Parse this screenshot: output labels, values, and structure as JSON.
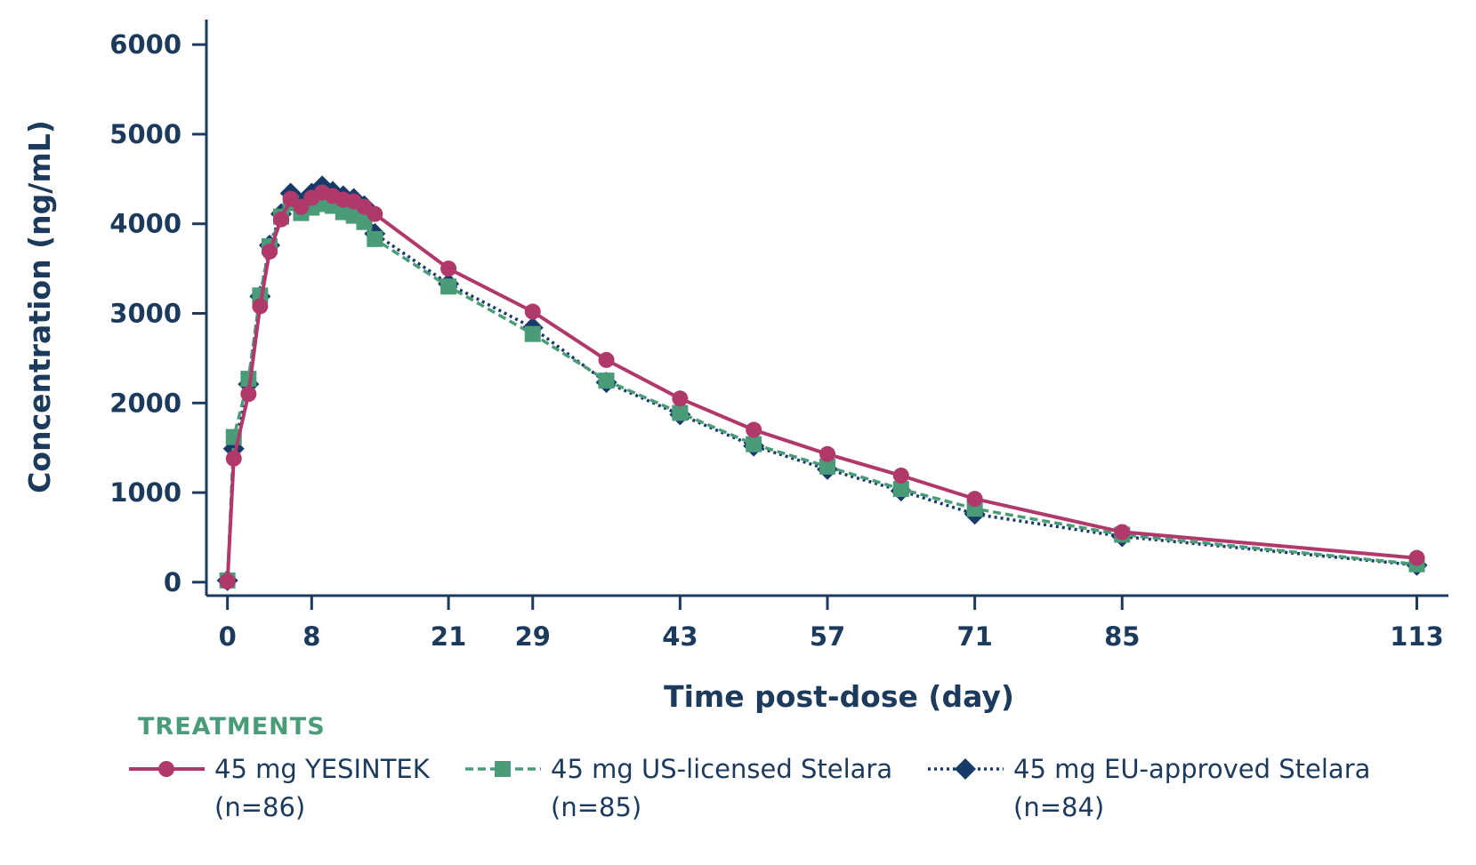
{
  "chart_data": {
    "type": "line",
    "xlabel": "Time post-dose (day)",
    "ylabel": "Concentration (ng/mL)",
    "xlim": [
      -2,
      116
    ],
    "ylim": [
      -150,
      6200
    ],
    "xticks": [
      0,
      8,
      21,
      29,
      43,
      57,
      71,
      85,
      113
    ],
    "yticks": [
      0,
      1000,
      2000,
      3000,
      4000,
      5000,
      6000
    ],
    "grid": false,
    "legend": {
      "title": "TREATMENTS",
      "placement": "bottom"
    },
    "series": [
      {
        "name": "45 mg YESINTEK",
        "name_line2": "(n=86)",
        "color": "#b0386a",
        "marker": "circle",
        "line_style": "solid",
        "x": [
          0,
          0.6,
          2,
          3.1,
          4,
          5.1,
          6,
          7,
          8,
          9,
          10,
          11,
          12,
          13,
          14,
          21,
          29,
          36,
          43,
          50,
          57,
          64,
          71,
          85,
          113
        ],
        "y": [
          10,
          1380,
          2100,
          3080,
          3690,
          4050,
          4280,
          4190,
          4290,
          4350,
          4310,
          4270,
          4250,
          4190,
          4110,
          3500,
          3020,
          2480,
          2050,
          1700,
          1430,
          1190,
          930,
          560,
          270
        ]
      },
      {
        "name": "45 mg US-licensed Stelara",
        "name_line2": "(n=85)",
        "color": "#4a9c78",
        "marker": "square",
        "line_style": "dashed",
        "x": [
          0,
          0.6,
          2,
          3.1,
          4,
          5.1,
          6,
          7,
          8,
          9,
          10,
          11,
          12,
          13,
          14,
          21,
          29,
          36,
          43,
          50,
          57,
          64,
          71,
          85,
          113
        ],
        "y": [
          20,
          1620,
          2270,
          3200,
          3750,
          4080,
          4230,
          4120,
          4180,
          4220,
          4200,
          4130,
          4090,
          4020,
          3830,
          3300,
          2770,
          2250,
          1890,
          1540,
          1290,
          1040,
          820,
          530,
          200
        ]
      },
      {
        "name": "45 mg EU-approved Stelara",
        "name_line2": "(n=84)",
        "color": "#173a68",
        "marker": "diamond",
        "line_style": "dotted",
        "x": [
          0,
          0.6,
          2,
          3.1,
          4,
          5.1,
          6,
          7,
          8,
          9,
          10,
          11,
          12,
          13,
          14,
          21,
          29,
          36,
          43,
          50,
          57,
          64,
          71,
          85,
          113
        ],
        "y": [
          20,
          1490,
          2210,
          3190,
          3760,
          4110,
          4340,
          4220,
          4340,
          4420,
          4360,
          4310,
          4280,
          4200,
          3890,
          3330,
          2840,
          2230,
          1870,
          1520,
          1260,
          1020,
          760,
          510,
          190
        ]
      }
    ]
  }
}
